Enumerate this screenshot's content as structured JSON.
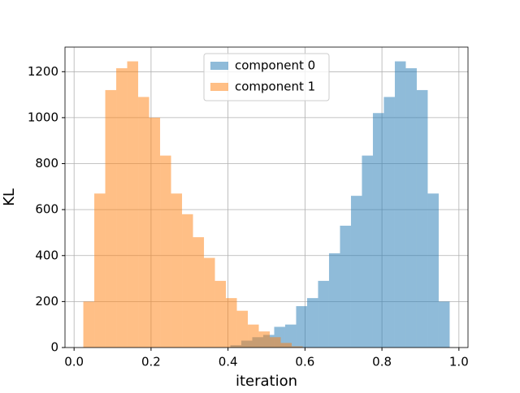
{
  "chart_data": {
    "type": "histogram",
    "xlabel": "iteration",
    "ylabel": "KL",
    "series": [
      {
        "name": "component 0",
        "color": "#1f77b4",
        "alpha": 0.5,
        "bins": [
          0.406,
          0.4345,
          0.463,
          0.4915,
          0.52,
          0.5485,
          0.577,
          0.6055,
          0.634,
          0.6625,
          0.691,
          0.7195,
          0.748,
          0.7765,
          0.805,
          0.8335,
          0.862,
          0.8905,
          0.919,
          0.9475,
          0.976
        ],
        "values": [
          10,
          30,
          45,
          55,
          90,
          100,
          180,
          215,
          290,
          410,
          530,
          660,
          835,
          1020,
          1090,
          1245,
          1215,
          1120,
          670,
          200
        ]
      },
      {
        "name": "component 1",
        "color": "#ff7f0e",
        "alpha": 0.5,
        "bins": [
          0.024,
          0.0525,
          0.081,
          0.1095,
          0.138,
          0.1665,
          0.195,
          0.2235,
          0.252,
          0.2805,
          0.309,
          0.3375,
          0.366,
          0.3945,
          0.423,
          0.4515,
          0.48,
          0.5085,
          0.537,
          0.5655,
          0.594
        ],
        "values": [
          200,
          670,
          1120,
          1215,
          1245,
          1090,
          1000,
          835,
          670,
          580,
          480,
          390,
          290,
          215,
          160,
          100,
          70,
          45,
          20,
          5
        ]
      }
    ],
    "xlim": [
      -0.0236,
      1.0236
    ],
    "xticks": [
      {
        "value": 0,
        "label": "0.0"
      },
      0.2,
      0.4,
      0.6,
      0.8,
      {
        "value": 1,
        "label": "1.0"
      }
    ],
    "ylim": [
      0,
      1307
    ],
    "yticks": [
      0,
      200,
      400,
      600,
      800,
      1000,
      1200
    ],
    "grid": true,
    "legend": "upper center"
  }
}
